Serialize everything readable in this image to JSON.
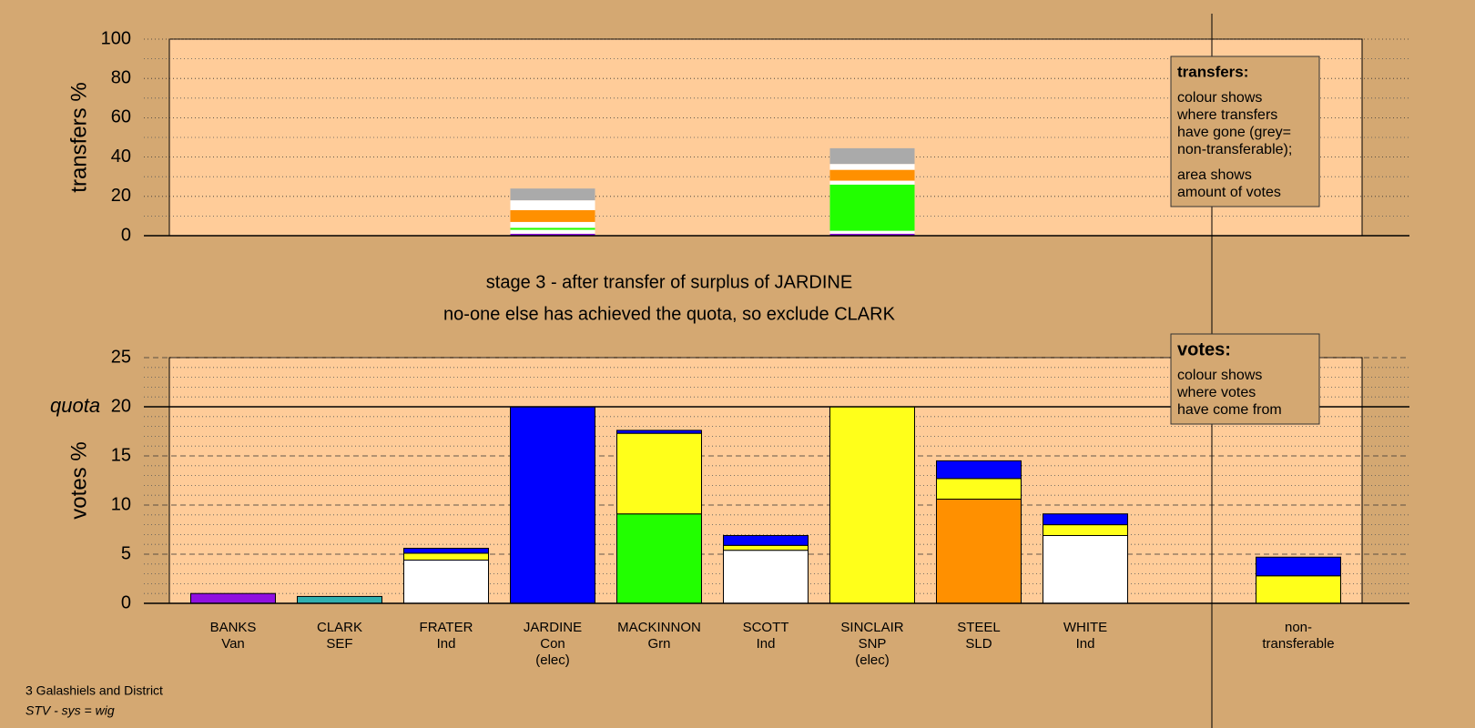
{
  "stage_title": "stage 3 - after transfer of surplus of JARDINE",
  "stage_note": "no-one else has achieved the quota, so exclude CLARK",
  "footer": {
    "line1": "3 Galashiels and District",
    "line2": "STV - sys = wig"
  },
  "chart_data": [
    {
      "type": "bar",
      "stacked": true,
      "ylabel": "transfers %",
      "ylim": [
        0,
        100
      ],
      "yticks": [
        0,
        20,
        40,
        60,
        80,
        100
      ],
      "minor_yticks": [
        10,
        30,
        50,
        70,
        90
      ],
      "note": {
        "title": "transfers:",
        "paragraphs": [
          [
            "colour shows",
            "where transfers",
            "have gone (grey=",
            "non-transferable);"
          ],
          [
            "area shows",
            "amount of votes"
          ]
        ]
      },
      "series": [
        {
          "color": "#9010e0",
          "values": [
            null,
            null,
            null,
            1,
            null,
            null,
            1,
            null,
            null,
            null,
            null
          ]
        },
        {
          "color": "#ffffff",
          "values": [
            null,
            null,
            null,
            2,
            null,
            null,
            1.5,
            null,
            null,
            null,
            null
          ]
        },
        {
          "color": "#22ff00",
          "values": [
            null,
            null,
            null,
            1,
            null,
            null,
            23.5,
            null,
            null,
            null,
            null
          ]
        },
        {
          "color": "#ffffff",
          "values": [
            null,
            null,
            null,
            3,
            null,
            null,
            2,
            null,
            null,
            null,
            null
          ]
        },
        {
          "color": "#ff9000",
          "values": [
            null,
            null,
            null,
            6,
            null,
            null,
            5.5,
            null,
            null,
            null,
            null
          ]
        },
        {
          "color": "#ffffff",
          "values": [
            null,
            null,
            null,
            5,
            null,
            null,
            3,
            null,
            null,
            null,
            null
          ]
        },
        {
          "color": "#aaaaaa",
          "values": [
            null,
            null,
            null,
            6,
            null,
            null,
            8,
            null,
            null,
            null,
            null
          ]
        }
      ]
    },
    {
      "type": "bar",
      "stacked": true,
      "ylabel": "votes %",
      "ylim": [
        0,
        25
      ],
      "yticks": [
        0,
        5,
        10,
        15,
        20,
        25
      ],
      "minor_yticks": [
        1,
        2,
        3,
        4,
        6,
        7,
        8,
        9,
        11,
        12,
        13,
        14,
        16,
        17,
        18,
        19,
        21,
        22,
        23,
        24
      ],
      "quota": {
        "label": "quota",
        "value": 20
      },
      "note": {
        "title": "votes:",
        "paragraphs": [
          [
            "colour shows",
            "where votes",
            "have come from"
          ]
        ]
      },
      "categories": [
        [
          "BANKS",
          "Van"
        ],
        [
          "CLARK",
          "SEF"
        ],
        [
          "FRATER",
          "Ind"
        ],
        [
          "JARDINE",
          "Con",
          "(elec)"
        ],
        [
          "MACKINNON",
          "Grn"
        ],
        [
          "SCOTT",
          "Ind"
        ],
        [
          "SINCLAIR",
          "SNP",
          "(elec)"
        ],
        [
          "STEEL",
          "SLD"
        ],
        [
          "WHITE",
          "Ind"
        ],
        null,
        [
          "non-",
          "transferable"
        ]
      ],
      "series": [
        {
          "color": "#9010e0",
          "values": [
            1.0,
            null,
            null,
            null,
            null,
            null,
            null,
            null,
            null,
            null,
            null
          ]
        },
        {
          "color": "#30b0b0",
          "values": [
            null,
            0.7,
            null,
            null,
            null,
            null,
            null,
            null,
            null,
            null,
            null
          ]
        },
        {
          "color": "#ffffff",
          "values": [
            null,
            null,
            4.4,
            null,
            null,
            5.4,
            null,
            null,
            6.9,
            null,
            null
          ]
        },
        {
          "color": "#22ff00",
          "values": [
            null,
            null,
            null,
            null,
            9.1,
            null,
            null,
            null,
            null,
            null,
            null
          ]
        },
        {
          "color": "#ff9000",
          "values": [
            null,
            null,
            null,
            null,
            null,
            null,
            null,
            10.6,
            null,
            null,
            null
          ]
        },
        {
          "color": "#ffff1a",
          "values": [
            null,
            null,
            0.7,
            null,
            8.2,
            0.5,
            20,
            2.1,
            1.1,
            null,
            2.8
          ]
        },
        {
          "color": "#0000ff",
          "values": [
            null,
            null,
            0.5,
            20,
            0.3,
            1.0,
            null,
            1.8,
            1.1,
            null,
            1.9
          ]
        }
      ]
    }
  ]
}
